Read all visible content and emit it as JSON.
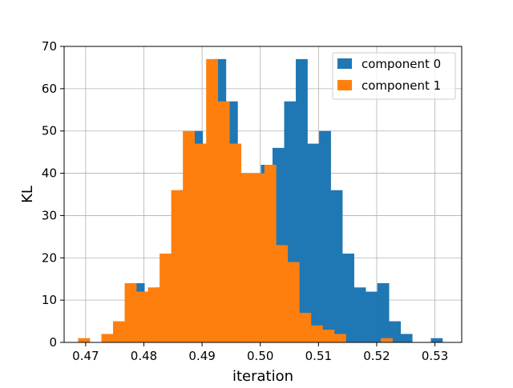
{
  "chart_data": {
    "type": "bar",
    "subtype": "histogram",
    "title": "",
    "xlabel": "iteration",
    "ylabel": "KL",
    "xlim": [
      0.4663,
      0.5346
    ],
    "ylim": [
      0,
      70
    ],
    "xticks": [
      0.47,
      0.48,
      0.49,
      0.5,
      0.51,
      0.52,
      0.53
    ],
    "xtick_labels": [
      "0.47",
      "0.48",
      "0.49",
      "0.50",
      "0.51",
      "0.52",
      "0.53"
    ],
    "yticks": [
      0,
      10,
      20,
      30,
      40,
      50,
      60,
      70
    ],
    "ytick_labels": [
      "0",
      "10",
      "20",
      "30",
      "40",
      "50",
      "60",
      "70"
    ],
    "grid": true,
    "legend_position": "top-right",
    "series": [
      {
        "name": "component 0",
        "color": "#1f77b4",
        "bins": [
          [
            0.4781,
            0.4801,
            14
          ],
          [
            0.4801,
            0.4821,
            12
          ],
          [
            0.4821,
            0.4841,
            13
          ],
          [
            0.4841,
            0.4861,
            21
          ],
          [
            0.4861,
            0.4881,
            36
          ],
          [
            0.4881,
            0.4901,
            50
          ],
          [
            0.4901,
            0.4921,
            47
          ],
          [
            0.4921,
            0.4941,
            67
          ],
          [
            0.4941,
            0.4961,
            57
          ],
          [
            0.4961,
            0.4981,
            40
          ],
          [
            0.4981,
            0.5001,
            40
          ],
          [
            0.5001,
            0.5021,
            42
          ],
          [
            0.5021,
            0.5041,
            46
          ],
          [
            0.5041,
            0.5061,
            57
          ],
          [
            0.5061,
            0.5081,
            67
          ],
          [
            0.5081,
            0.5101,
            47
          ],
          [
            0.5101,
            0.5121,
            50
          ],
          [
            0.5121,
            0.5141,
            36
          ],
          [
            0.5141,
            0.5161,
            21
          ],
          [
            0.5161,
            0.5181,
            13
          ],
          [
            0.5181,
            0.5201,
            12
          ],
          [
            0.5201,
            0.5221,
            14
          ],
          [
            0.5221,
            0.5241,
            5
          ],
          [
            0.5241,
            0.5261,
            2
          ],
          [
            0.5293,
            0.5313,
            1
          ]
        ]
      },
      {
        "name": "component 1",
        "color": "#ff7f0e",
        "bins": [
          [
            0.4687,
            0.4707,
            1
          ],
          [
            0.4727,
            0.4747,
            2
          ],
          [
            0.4747,
            0.4767,
            5
          ],
          [
            0.4767,
            0.4787,
            14
          ],
          [
            0.4787,
            0.4807,
            12
          ],
          [
            0.4807,
            0.4827,
            13
          ],
          [
            0.4827,
            0.4847,
            21
          ],
          [
            0.4847,
            0.4867,
            36
          ],
          [
            0.4867,
            0.4887,
            50
          ],
          [
            0.4887,
            0.4907,
            47
          ],
          [
            0.4907,
            0.4927,
            67
          ],
          [
            0.4927,
            0.4947,
            57
          ],
          [
            0.4947,
            0.4967,
            47
          ],
          [
            0.4967,
            0.4987,
            40
          ],
          [
            0.4987,
            0.5007,
            40
          ],
          [
            0.5007,
            0.5027,
            42
          ],
          [
            0.5027,
            0.5047,
            23
          ],
          [
            0.5047,
            0.5067,
            19
          ],
          [
            0.5067,
            0.5087,
            7
          ],
          [
            0.5087,
            0.5107,
            4
          ],
          [
            0.5107,
            0.5127,
            3
          ],
          [
            0.5127,
            0.5147,
            2
          ],
          [
            0.5207,
            0.5227,
            1
          ]
        ]
      }
    ]
  }
}
